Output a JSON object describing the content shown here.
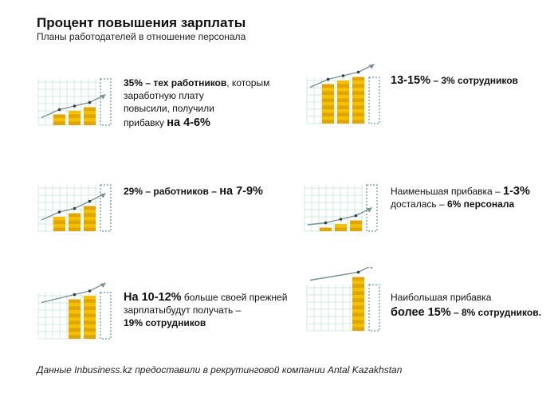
{
  "header": {
    "title": "Процент повышения зарплаты",
    "subtitle": "Планы работодателей в отношение персонала"
  },
  "cards": [
    {
      "line1_a": "35% – ",
      "line1_b": "тех работников",
      "line1_c": ", которым",
      "line2": "заработную плату",
      "line3": "повысили, получили",
      "line4_a": "прибавку ",
      "line4_b": "на 4-6%"
    },
    {
      "big": "13-15%",
      "rest": " – 3% сотрудников"
    },
    {
      "a": "29% – работников – ",
      "big": "на 7-9%"
    },
    {
      "line1_a": "Наименьшая прибавка – ",
      "line1_big": "1-3%",
      "line2_a": "досталась – ",
      "line2_b": "6% персонала"
    },
    {
      "line1_big": "На 10-12%",
      "line1_rest": "  больше своей прежней",
      "line2": "зарплатыбудут получать –",
      "line3": "19% сотрудников"
    },
    {
      "line1": "Наибольшая прибавка",
      "line2_big": "более 15%",
      "line2_rest": " – 8% сотрудников."
    }
  ],
  "footer": "Данные Inbusiness.kz предоставили в рекрутинговой компании Antal Kazakhstan",
  "colors": {
    "grid": "#cfe8e2",
    "coin": "#f5c000",
    "coin_dark": "#e0a500",
    "arrow": "#7a8f96",
    "dot": "#2f3d44",
    "dashed": "#5b9a94"
  }
}
